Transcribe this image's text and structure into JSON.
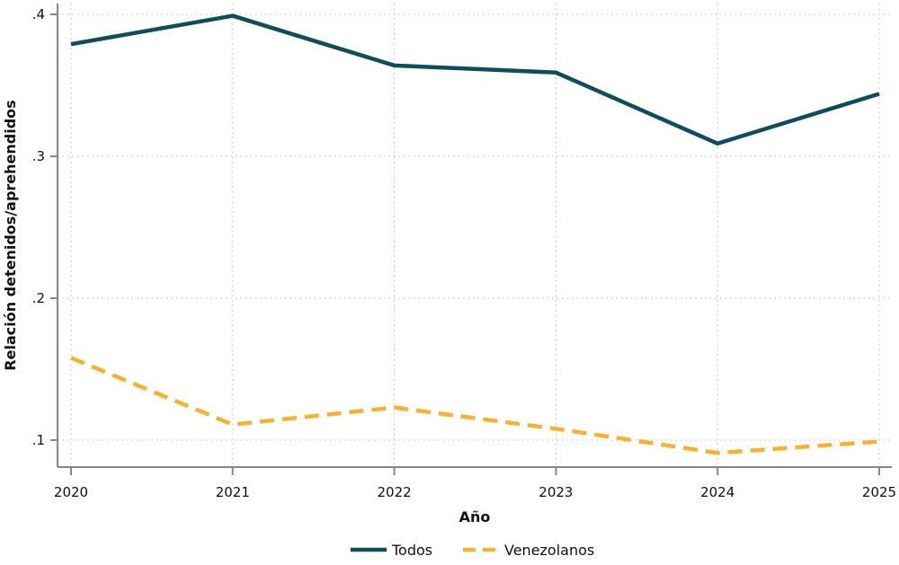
{
  "chart_data": {
    "type": "line",
    "title": "",
    "xlabel": "Año",
    "ylabel": "Relación detenidos/aprehendidos",
    "x": [
      2020,
      2021,
      2022,
      2023,
      2024,
      2025
    ],
    "x_tick_labels": [
      "2020",
      "2021",
      "2022",
      "2023",
      "2024",
      "2025"
    ],
    "y_ticks": [
      0.1,
      0.2,
      0.3,
      0.4
    ],
    "y_tick_labels": [
      ".1",
      ".2",
      ".3",
      ".4"
    ],
    "xlim": [
      2020,
      2025
    ],
    "ylim": [
      0.081,
      0.407
    ],
    "grid": true,
    "legend_position": "bottom",
    "series": [
      {
        "name": "Todos",
        "values": [
          0.379,
          0.399,
          0.364,
          0.359,
          0.309,
          0.344
        ],
        "color": "#0f4c5c",
        "style": "solid"
      },
      {
        "name": "Venezolanos",
        "values": [
          0.158,
          0.111,
          0.123,
          0.108,
          0.091,
          0.099
        ],
        "color": "#fbb130",
        "style": "dashed"
      }
    ]
  }
}
